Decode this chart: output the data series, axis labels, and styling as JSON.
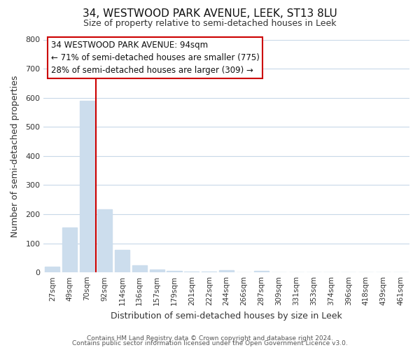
{
  "title": "34, WESTWOOD PARK AVENUE, LEEK, ST13 8LU",
  "subtitle": "Size of property relative to semi-detached houses in Leek",
  "xlabel": "Distribution of semi-detached houses by size in Leek",
  "ylabel": "Number of semi-detached properties",
  "bar_labels": [
    "27sqm",
    "49sqm",
    "70sqm",
    "92sqm",
    "114sqm",
    "136sqm",
    "157sqm",
    "179sqm",
    "201sqm",
    "222sqm",
    "244sqm",
    "266sqm",
    "287sqm",
    "309sqm",
    "331sqm",
    "353sqm",
    "374sqm",
    "396sqm",
    "418sqm",
    "439sqm",
    "461sqm"
  ],
  "bar_values": [
    20,
    155,
    590,
    218,
    78,
    25,
    10,
    5,
    3,
    2,
    8,
    0,
    5,
    0,
    0,
    0,
    0,
    0,
    0,
    0,
    0
  ],
  "bar_color": "#ccdded",
  "vline_color": "#cc0000",
  "vline_bar_index": 2,
  "ylim": [
    0,
    800
  ],
  "yticks": [
    0,
    100,
    200,
    300,
    400,
    500,
    600,
    700,
    800
  ],
  "annotation_title": "34 WESTWOOD PARK AVENUE: 94sqm",
  "annotation_line1": "← 71% of semi-detached houses are smaller (775)",
  "annotation_line2": "28% of semi-detached houses are larger (309) →",
  "annotation_box_color": "#ffffff",
  "annotation_box_edge": "#cc0000",
  "footer_line1": "Contains HM Land Registry data © Crown copyright and database right 2024.",
  "footer_line2": "Contains public sector information licensed under the Open Government Licence v3.0.",
  "bg_color": "#ffffff",
  "plot_bg_color": "#ffffff",
  "grid_color": "#c8d8e8"
}
